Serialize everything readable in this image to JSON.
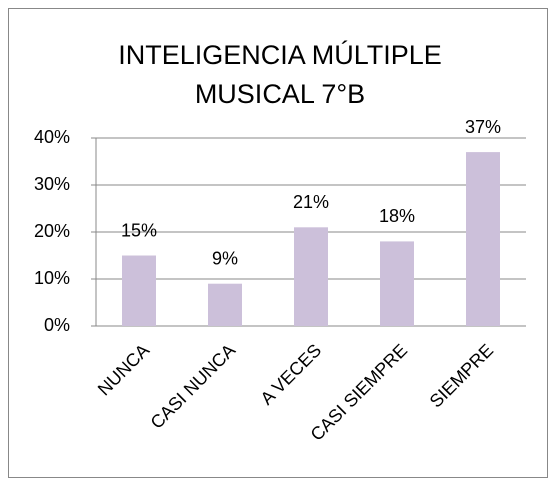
{
  "chart_data": {
    "type": "bar",
    "title": [
      "INTELIGENCIA MÚLTIPLE",
      "MUSICAL 7°B"
    ],
    "categories": [
      "NUNCA",
      "CASI NUNCA",
      "A VECES",
      "CASI SIEMPRE",
      "SIEMPRE"
    ],
    "values": [
      15,
      9,
      21,
      18,
      37
    ],
    "value_labels": [
      "15%",
      "9%",
      "21%",
      "18%",
      "37%"
    ],
    "color": "#ccc0da",
    "ylim": [
      0,
      40
    ],
    "yticks": [
      {
        "value": 0,
        "label": "0%"
      },
      {
        "value": 10,
        "label": "10%"
      },
      {
        "value": 20,
        "label": "20%"
      },
      {
        "value": 30,
        "label": "30%"
      },
      {
        "value": 40,
        "label": "40%"
      }
    ],
    "grid": true
  }
}
